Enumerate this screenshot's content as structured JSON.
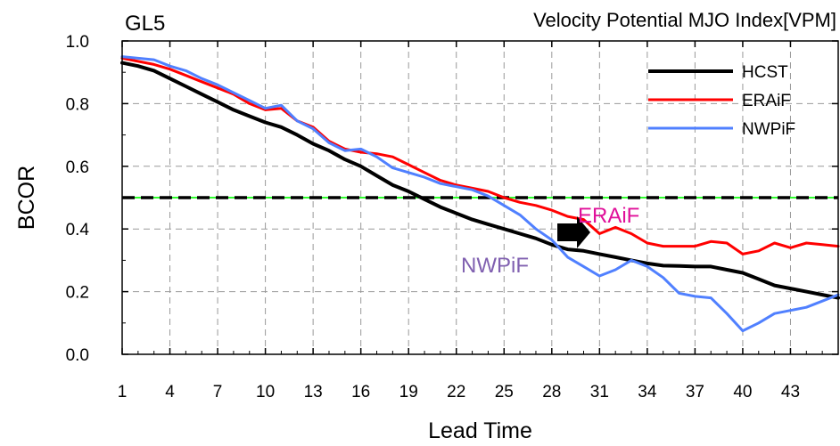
{
  "chart_data": {
    "type": "line",
    "title_left": "GL5",
    "title_right": "Velocity Potential MJO Index[VPM]",
    "xlabel": "Lead Time",
    "ylabel": "BCOR",
    "xlim": [
      1,
      46
    ],
    "ylim": [
      0.0,
      1.0
    ],
    "x_ticks": [
      1,
      4,
      7,
      10,
      13,
      16,
      19,
      22,
      25,
      28,
      31,
      34,
      37,
      40,
      43
    ],
    "y_ticks": [
      0.0,
      0.2,
      0.4,
      0.6,
      0.8,
      1.0
    ],
    "y_tick_labels": [
      "0.0",
      "0.2",
      "0.4",
      "0.6",
      "0.8",
      "1.0"
    ],
    "grid": true,
    "legend_position": "top-right",
    "threshold": 0.5,
    "x": [
      1,
      2,
      3,
      4,
      5,
      6,
      7,
      8,
      9,
      10,
      11,
      12,
      13,
      14,
      15,
      16,
      17,
      18,
      19,
      20,
      21,
      22,
      23,
      24,
      25,
      26,
      27,
      28,
      29,
      30,
      31,
      32,
      33,
      34,
      35,
      36,
      37,
      38,
      39,
      40,
      41,
      42,
      43,
      44,
      45,
      46
    ],
    "series": [
      {
        "name": "HCST",
        "color": "#000000",
        "values": [
          0.93,
          0.92,
          0.905,
          0.88,
          0.855,
          0.83,
          0.805,
          0.78,
          0.76,
          0.74,
          0.725,
          0.7,
          0.672,
          0.65,
          0.622,
          0.6,
          0.57,
          0.54,
          0.52,
          0.495,
          0.47,
          0.45,
          0.43,
          0.415,
          0.4,
          0.385,
          0.37,
          0.35,
          0.335,
          0.33,
          0.32,
          0.31,
          0.3,
          0.29,
          0.283,
          0.282,
          0.28,
          0.28,
          0.27,
          0.26,
          0.24,
          0.22,
          0.21,
          0.2,
          0.19,
          0.18
        ]
      },
      {
        "name": "ERAiF",
        "color": "#ff0000",
        "values": [
          0.945,
          0.935,
          0.925,
          0.91,
          0.89,
          0.87,
          0.85,
          0.83,
          0.8,
          0.78,
          0.785,
          0.745,
          0.725,
          0.68,
          0.655,
          0.645,
          0.64,
          0.63,
          0.605,
          0.58,
          0.555,
          0.54,
          0.53,
          0.52,
          0.5,
          0.485,
          0.475,
          0.46,
          0.44,
          0.43,
          0.385,
          0.405,
          0.385,
          0.355,
          0.345,
          0.345,
          0.345,
          0.36,
          0.355,
          0.32,
          0.33,
          0.355,
          0.34,
          0.355,
          0.35,
          0.345
        ]
      },
      {
        "name": "NWPiF",
        "color": "#5080ff",
        "values": [
          0.95,
          0.945,
          0.94,
          0.92,
          0.905,
          0.88,
          0.86,
          0.835,
          0.81,
          0.785,
          0.795,
          0.745,
          0.72,
          0.675,
          0.65,
          0.655,
          0.63,
          0.595,
          0.58,
          0.565,
          0.545,
          0.535,
          0.525,
          0.505,
          0.475,
          0.445,
          0.4,
          0.365,
          0.31,
          0.28,
          0.25,
          0.27,
          0.3,
          0.28,
          0.245,
          0.195,
          0.185,
          0.18,
          0.13,
          0.075,
          0.1,
          0.13,
          0.14,
          0.15,
          0.17,
          0.19
        ]
      }
    ],
    "annotations": [
      {
        "text": "ERAiF",
        "color": "#e0109a"
      },
      {
        "text": "NWPiF",
        "color": "#8060b0"
      }
    ]
  }
}
